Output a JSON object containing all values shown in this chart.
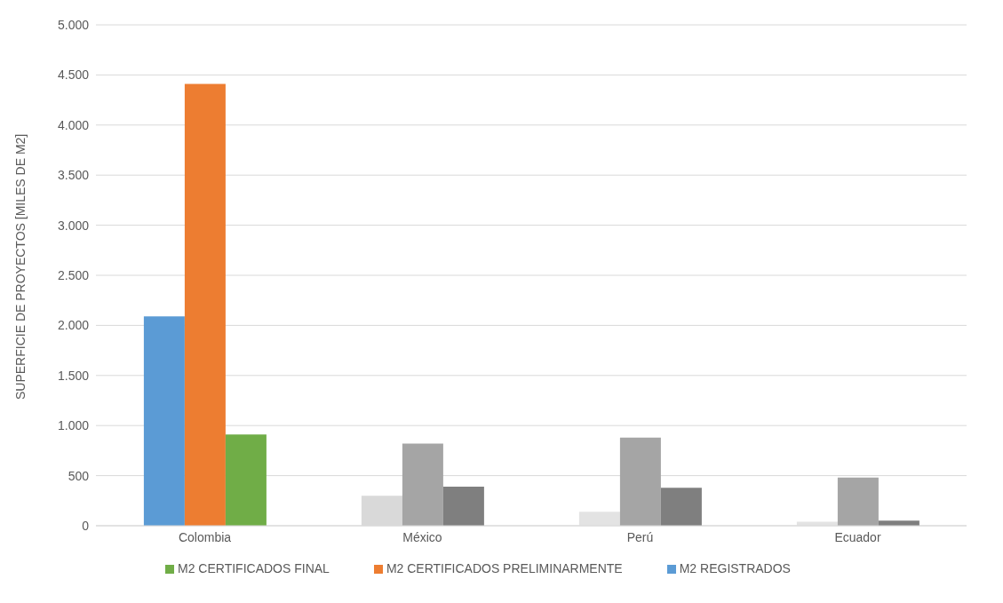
{
  "chart_data": {
    "type": "bar",
    "ylabel": "SUPERFICIE DE PROYECTOS [MILES DE M2]",
    "categories": [
      "Colombia",
      "México",
      "Perú",
      "Ecuador"
    ],
    "series": [
      {
        "name": "M2 REGISTRADOS",
        "color": "#5b9bd5",
        "colors": [
          "#5b9bd5",
          "#d9d9d9",
          "#e3e3e3",
          "#e3e3e3"
        ],
        "values": [
          2090,
          300,
          140,
          40
        ]
      },
      {
        "name": "M2 CERTIFICADOS PRELIMINARMENTE",
        "color": "#ed7d31",
        "colors": [
          "#ed7d31",
          "#a5a5a5",
          "#a5a5a5",
          "#a5a5a5"
        ],
        "values": [
          4410,
          820,
          880,
          480
        ]
      },
      {
        "name": "M2 CERTIFICADOS FINAL",
        "color": "#70ad47",
        "colors": [
          "#70ad47",
          "#7f7f7f",
          "#7f7f7f",
          "#7f7f7f"
        ],
        "values": [
          910,
          390,
          380,
          50
        ]
      }
    ],
    "ylim": [
      0,
      5000
    ],
    "yticks": [
      0,
      500,
      {
        "value": 1000,
        "label": "1.000"
      },
      {
        "value": 1500,
        "label": "1.500"
      },
      {
        "value": 2000,
        "label": "2.000"
      },
      {
        "value": 2500,
        "label": "2.500"
      },
      {
        "value": 3000,
        "label": "3.000"
      },
      {
        "value": 3500,
        "label": "3.500"
      },
      {
        "value": 4000,
        "label": "4.000"
      },
      {
        "value": 4500,
        "label": "4.500"
      },
      {
        "value": 5000,
        "label": "5.000"
      }
    ],
    "grid": "y",
    "legend": "bottom"
  }
}
